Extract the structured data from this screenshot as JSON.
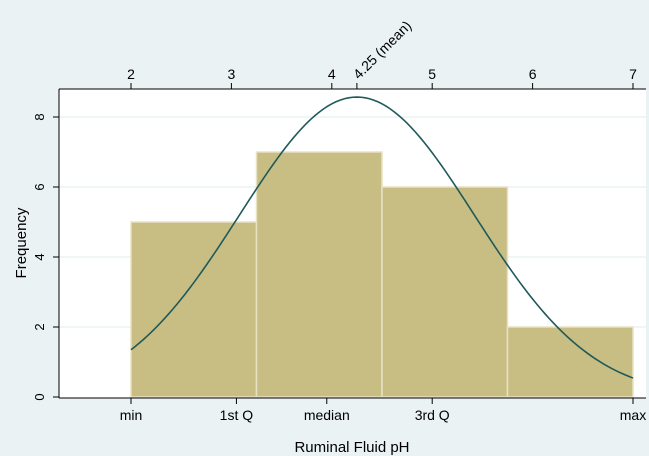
{
  "chart_data": {
    "type": "bar",
    "subtype": "histogram with normal density overlay",
    "xlabel": "Ruminal Fluid pH",
    "ylabel": "Frequency",
    "xlim": [
      2,
      7
    ],
    "ylim": [
      0,
      8.8
    ],
    "bins": [
      {
        "start": 2.0,
        "end": 3.25,
        "value": 5
      },
      {
        "start": 3.25,
        "end": 4.5,
        "value": 7
      },
      {
        "start": 4.5,
        "end": 5.75,
        "value": 6
      },
      {
        "start": 5.75,
        "end": 7.0,
        "value": 2
      }
    ],
    "yticks": [
      {
        "value": 0,
        "label": "0"
      },
      {
        "value": 2,
        "label": "2"
      },
      {
        "value": 4,
        "label": "4"
      },
      {
        "value": 6,
        "label": "6"
      },
      {
        "value": 8,
        "label": "8"
      }
    ],
    "top_axis_ticks": [
      {
        "value": 2,
        "label": "2"
      },
      {
        "value": 3,
        "label": "3"
      },
      {
        "value": 4,
        "label": "4"
      },
      {
        "value": 5,
        "label": "5"
      },
      {
        "value": 6,
        "label": "6"
      },
      {
        "value": 7,
        "label": "7"
      }
    ],
    "mean_marker": {
      "value": 4.25,
      "label": "4.25 (mean)"
    },
    "bottom_axis_ticks": [
      {
        "value": 2.0,
        "label": "min"
      },
      {
        "value": 3.05,
        "label": "1st Q"
      },
      {
        "value": 3.95,
        "label": "median"
      },
      {
        "value": 5.0,
        "label": "3rd Q"
      },
      {
        "value": 7.0,
        "label": "max"
      }
    ],
    "normal_curve": {
      "mean": 4.25,
      "sd": 1.17,
      "peak": 8.57
    },
    "grid": true,
    "colors": {
      "background": "#eaf2f3",
      "plot_area": "#ffffff",
      "bar_fill": "#c8bd83",
      "bar_edge": "#e8e2c4",
      "curve": "#1f5a5a",
      "gridline": "#e2ecec"
    }
  }
}
